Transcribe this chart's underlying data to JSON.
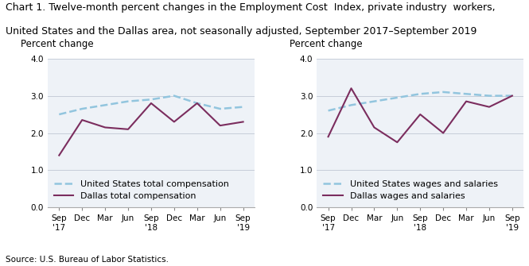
{
  "title_line1": "Chart 1. Twelve-month percent changes in the Employment Cost  Index, private industry  workers,",
  "title_line2": "United States and the Dallas area, not seasonally adjusted, September 2017–September 2019",
  "source": "Source: U.S. Bureau of Labor Statistics.",
  "left": {
    "ylabel": "Percent change",
    "us_label": "United States total compensation",
    "dallas_label": "Dallas total compensation",
    "us_values": [
      2.5,
      2.65,
      2.75,
      2.85,
      2.9,
      3.0,
      2.8,
      2.65,
      2.7
    ],
    "dallas_values": [
      1.4,
      2.35,
      2.15,
      2.1,
      2.8,
      2.3,
      2.8,
      2.2,
      2.3
    ]
  },
  "right": {
    "ylabel": "Percent change",
    "us_label": "United States wages and salaries",
    "dallas_label": "Dallas wages and salaries",
    "us_values": [
      2.6,
      2.75,
      2.85,
      2.95,
      3.05,
      3.1,
      3.05,
      3.0,
      3.0
    ],
    "dallas_values": [
      1.9,
      3.2,
      2.15,
      1.75,
      2.5,
      2.0,
      2.85,
      2.7,
      3.0
    ]
  },
  "us_color": "#92c5de",
  "dallas_color": "#7b2d5e",
  "ylim": [
    0.0,
    4.0
  ],
  "yticks": [
    0.0,
    1.0,
    2.0,
    3.0,
    4.0
  ],
  "title_fontsize": 9.0,
  "ylabel_fontsize": 8.5,
  "tick_fontsize": 7.5,
  "legend_fontsize": 8.0,
  "source_fontsize": 7.5,
  "plot_bg_color": "#eef2f7"
}
